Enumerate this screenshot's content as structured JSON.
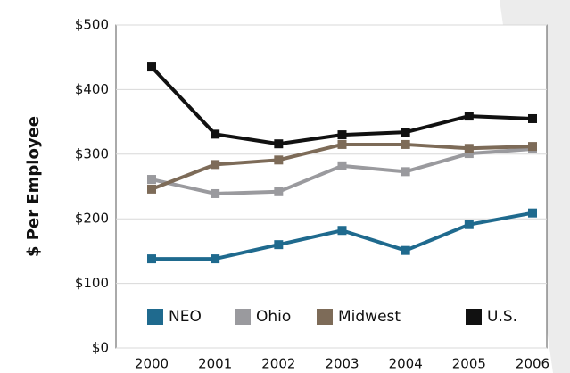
{
  "chart_data": {
    "type": "line",
    "ylabel": "$ Per Employee",
    "categories": [
      "2000",
      "2001",
      "2002",
      "2003",
      "2004",
      "2005",
      "2006"
    ],
    "series": [
      {
        "name": "NEO",
        "color": "#1f6a8e",
        "values": [
          138,
          138,
          160,
          182,
          151,
          191,
          209
        ]
      },
      {
        "name": "Ohio",
        "color": "#9a9a9e",
        "values": [
          261,
          239,
          242,
          282,
          273,
          301,
          308
        ]
      },
      {
        "name": "Midwest",
        "color": "#7d6b58",
        "values": [
          246,
          284,
          291,
          315,
          315,
          309,
          312
        ]
      },
      {
        "name": "U.S.",
        "color": "#111111",
        "values": [
          435,
          331,
          316,
          330,
          334,
          359,
          355
        ]
      }
    ],
    "ylim": [
      0,
      500
    ],
    "yticks": [
      {
        "value": 0,
        "label": "$0"
      },
      {
        "value": 100,
        "label": "$100"
      },
      {
        "value": 200,
        "label": "$200"
      },
      {
        "value": 300,
        "label": "$300"
      },
      {
        "value": 400,
        "label": "$400"
      },
      {
        "value": 500,
        "label": "$500"
      }
    ],
    "grid": true,
    "legend": "lower center"
  }
}
